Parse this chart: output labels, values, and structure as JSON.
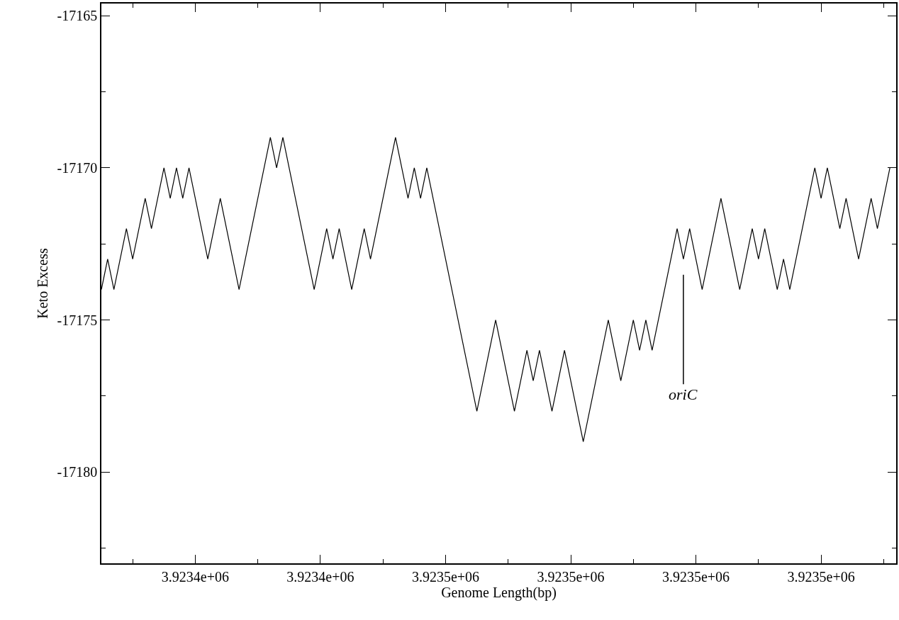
{
  "chart_data": {
    "type": "line",
    "xlabel": "Genome Length(bp)",
    "ylabel": "Keto Excess",
    "x": [
      3923405,
      3923406,
      3923407,
      3923409,
      3923410,
      3923412,
      3923413,
      3923415,
      3923416,
      3923417,
      3923418,
      3923419,
      3923422,
      3923424,
      3923427,
      3923432,
      3923433,
      3923434,
      3923439,
      3923441,
      3923442,
      3923443,
      3923445,
      3923447,
      3923448,
      3923452,
      3923454,
      3923455,
      3923456,
      3923457,
      3923465,
      3923468,
      3923471,
      3923473,
      3923474,
      3923475,
      3923477,
      3923479,
      3923482,
      3923486,
      3923488,
      3923490,
      3923491,
      3923492,
      3923493,
      3923497,
      3923498,
      3923499,
      3923501,
      3923504,
      3923507,
      3923509,
      3923510,
      3923511,
      3923513,
      3923514,
      3923515,
      3923519,
      3923520,
      3923521,
      3923523,
      3923524,
      3923526,
      3923528,
      3923529,
      3923531
    ],
    "series": [
      {
        "color": "#000000",
        "values": [
          -17174,
          -17173,
          -17174,
          -17172,
          -17173,
          -17171,
          -17172,
          -17170,
          -17171,
          -17170,
          -17171,
          -17170,
          -17173,
          -17171,
          -17174,
          -17169,
          -17170,
          -17169,
          -17174,
          -17172,
          -17173,
          -17172,
          -17174,
          -17172,
          -17173,
          -17169,
          -17171,
          -17170,
          -17171,
          -17170,
          -17178,
          -17175,
          -17178,
          -17176,
          -17177,
          -17176,
          -17178,
          -17176,
          -17179,
          -17175,
          -17177,
          -17175,
          -17176,
          -17175,
          -17176,
          -17172,
          -17173,
          -17172,
          -17174,
          -17171,
          -17174,
          -17172,
          -17173,
          -17172,
          -17174,
          -17173,
          -17174,
          -17170,
          -17171,
          -17170,
          -17172,
          -17171,
          -17173,
          -17171,
          -17172,
          -17170
        ]
      }
    ],
    "xlim": [
      3923405,
      3923532
    ],
    "ylim": [
      -17183,
      -17164.6
    ],
    "xticks": [
      {
        "value": 3923410,
        "label": null
      },
      {
        "value": 3923420,
        "label": "3.9234e+06"
      },
      {
        "value": 3923430,
        "label": null
      },
      {
        "value": 3923440,
        "label": "3.9234e+06"
      },
      {
        "value": 3923450,
        "label": null
      },
      {
        "value": 3923460,
        "label": "3.9235e+06"
      },
      {
        "value": 3923470,
        "label": null
      },
      {
        "value": 3923480,
        "label": "3.9235e+06"
      },
      {
        "value": 3923490,
        "label": null
      },
      {
        "value": 3923500,
        "label": "3.9235e+06"
      },
      {
        "value": 3923510,
        "label": null
      },
      {
        "value": 3923520,
        "label": "3.9235e+06"
      },
      {
        "value": 3923530,
        "label": null
      }
    ],
    "yticks": [
      {
        "value": -17182.5,
        "label": null
      },
      -17180,
      {
        "value": -17177.5,
        "label": null
      },
      -17175,
      {
        "value": -17172.5,
        "label": null
      },
      -17170,
      {
        "value": -17167.5,
        "label": null
      },
      -17165
    ],
    "annotations": [
      {
        "text": "oriC",
        "x": 3923498,
        "y": -17173
      }
    ],
    "marker": "none",
    "line_style": "solid"
  }
}
